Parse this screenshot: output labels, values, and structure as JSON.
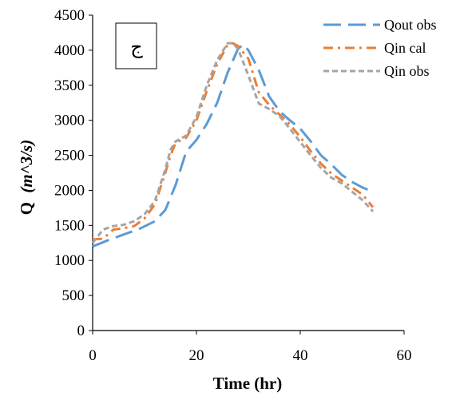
{
  "chart_data": {
    "type": "line",
    "xlabel": "Time (hr)",
    "ylabel_main": "Q",
    "ylabel_unit": "(m^3/s)",
    "xlim": [
      0,
      60
    ],
    "ylim": [
      0,
      4500
    ],
    "xticks": [
      0,
      20,
      40,
      60
    ],
    "yticks": [
      0,
      500,
      1000,
      1500,
      2000,
      2500,
      3000,
      3500,
      4000,
      4500
    ],
    "xtick_labels": [
      "0",
      "20",
      "40",
      "60"
    ],
    "ytick_labels": [
      "0",
      "500",
      "1000",
      "1500",
      "2000",
      "2500",
      "3000",
      "3500",
      "4000",
      "4500"
    ],
    "grid": false,
    "legend_position": "top-right",
    "panel_label": "ج",
    "series": [
      {
        "name": "Qout obs",
        "color": "#5b9bd5",
        "dash": "long-dash",
        "x": [
          0,
          3,
          6,
          9,
          12,
          14,
          16,
          18,
          20,
          22,
          24,
          26,
          28,
          29,
          30,
          32,
          34,
          36,
          38,
          40,
          42,
          44,
          46,
          48,
          50,
          52,
          54
        ],
        "y": [
          1200,
          1290,
          1370,
          1450,
          1560,
          1720,
          2080,
          2550,
          2720,
          2950,
          3250,
          3680,
          4020,
          4080,
          4000,
          3720,
          3340,
          3130,
          3000,
          2880,
          2700,
          2500,
          2370,
          2220,
          2120,
          2040,
          1980
        ]
      },
      {
        "name": "Qin cal",
        "color": "#ed7d31",
        "dash": "dash-dot",
        "x": [
          0,
          2,
          4,
          6,
          8,
          10,
          12,
          14,
          15,
          16,
          18,
          20,
          22,
          24,
          26,
          27,
          28,
          30,
          32,
          34,
          36,
          38,
          40,
          42,
          44,
          46,
          48,
          50,
          52,
          54
        ],
        "y": [
          1300,
          1310,
          1440,
          1460,
          1490,
          1600,
          1800,
          2250,
          2500,
          2680,
          2750,
          3000,
          3420,
          3800,
          4080,
          4100,
          4060,
          3880,
          3400,
          3220,
          3080,
          2940,
          2760,
          2560,
          2380,
          2240,
          2140,
          2040,
          1940,
          1760
        ]
      },
      {
        "name": "Qin obs",
        "color": "#a5a5a5",
        "dash": "short-dash",
        "x": [
          0,
          2,
          4,
          6,
          8,
          10,
          12,
          14,
          15,
          16,
          18,
          20,
          22,
          24,
          26,
          27,
          28,
          30,
          32,
          34,
          36,
          38,
          40,
          42,
          44,
          46,
          48,
          50,
          52,
          54
        ],
        "y": [
          1250,
          1440,
          1490,
          1510,
          1560,
          1660,
          1850,
          2300,
          2580,
          2700,
          2780,
          3050,
          3500,
          3860,
          4100,
          4100,
          4020,
          3640,
          3240,
          3160,
          3060,
          2880,
          2690,
          2500,
          2320,
          2180,
          2100,
          1980,
          1860,
          1700
        ]
      }
    ]
  }
}
